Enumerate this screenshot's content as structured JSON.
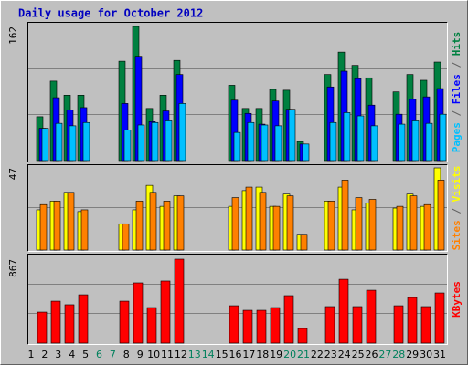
{
  "chart_data": [
    {
      "type": "bar",
      "title": "Daily usage for October 2012",
      "ylim": [
        0,
        162
      ],
      "yticks": [
        162
      ],
      "legend_separator": " / ",
      "series": [
        {
          "name": "Pages",
          "color": "#00c0ff",
          "values": [
            0,
            39,
            45,
            42,
            46,
            0,
            0,
            37,
            43,
            46,
            48,
            69,
            0,
            0,
            0,
            34,
            46,
            43,
            42,
            62,
            20,
            0,
            46,
            58,
            54,
            42,
            0,
            44,
            48,
            45,
            56
          ]
        },
        {
          "name": "Files",
          "color": "#0000ff",
          "values": [
            0,
            39,
            76,
            61,
            64,
            0,
            0,
            69,
            126,
            47,
            60,
            104,
            0,
            0,
            0,
            73,
            57,
            44,
            72,
            62,
            20,
            0,
            89,
            108,
            99,
            67,
            0,
            56,
            74,
            77,
            87
          ]
        },
        {
          "name": "Hits",
          "color": "#008040",
          "values": [
            0,
            53,
            96,
            79,
            79,
            0,
            0,
            120,
            162,
            63,
            79,
            121,
            0,
            0,
            0,
            91,
            63,
            63,
            86,
            85,
            23,
            0,
            104,
            131,
            115,
            100,
            0,
            83,
            104,
            97,
            119
          ]
        }
      ]
    },
    {
      "type": "bar",
      "ylim": [
        0,
        47
      ],
      "yticks": [
        47
      ],
      "legend_separator": " / ",
      "series": [
        {
          "name": "Sites",
          "color": "#ff8000",
          "values": [
            0,
            26,
            28,
            33,
            23,
            0,
            0,
            15,
            28,
            33,
            28,
            31,
            0,
            0,
            0,
            30,
            36,
            33,
            25,
            31,
            9,
            0,
            28,
            40,
            30,
            29,
            0,
            25,
            31,
            26,
            40
          ]
        },
        {
          "name": "Visits",
          "color": "#ffff00",
          "values": [
            0,
            23,
            28,
            33,
            22,
            0,
            0,
            15,
            23,
            37,
            25,
            31,
            0,
            0,
            0,
            25,
            34,
            36,
            25,
            32,
            9,
            0,
            28,
            36,
            23,
            27,
            0,
            24,
            32,
            25,
            47
          ]
        }
      ]
    },
    {
      "type": "bar",
      "ylim": [
        0,
        867
      ],
      "yticks": [
        867
      ],
      "categories": [
        "1",
        "2",
        "3",
        "4",
        "5",
        "6",
        "7",
        "8",
        "9",
        "10",
        "11",
        "12",
        "13",
        "14",
        "15",
        "16",
        "17",
        "18",
        "19",
        "20",
        "21",
        "22",
        "23",
        "24",
        "25",
        "26",
        "27",
        "28",
        "29",
        "30",
        "31"
      ],
      "category_colors": [
        "#000000",
        "#000000",
        "#000000",
        "#000000",
        "#000000",
        "#00805c",
        "#00805c",
        "#000000",
        "#000000",
        "#000000",
        "#000000",
        "#000000",
        "#00805c",
        "#00805c",
        "#000000",
        "#000000",
        "#000000",
        "#000000",
        "#000000",
        "#00805c",
        "#00805c",
        "#000000",
        "#000000",
        "#000000",
        "#000000",
        "#000000",
        "#00805c",
        "#00805c",
        "#000000",
        "#000000",
        "#000000"
      ],
      "series": [
        {
          "name": "KBytes",
          "color": "#ff0000",
          "values": [
            0,
            320,
            433,
            396,
            499,
            0,
            0,
            433,
            622,
            367,
            641,
            867,
            0,
            0,
            0,
            386,
            339,
            339,
            367,
            490,
            151,
            0,
            377,
            659,
            377,
            546,
            0,
            386,
            471,
            377,
            518
          ]
        }
      ]
    }
  ]
}
